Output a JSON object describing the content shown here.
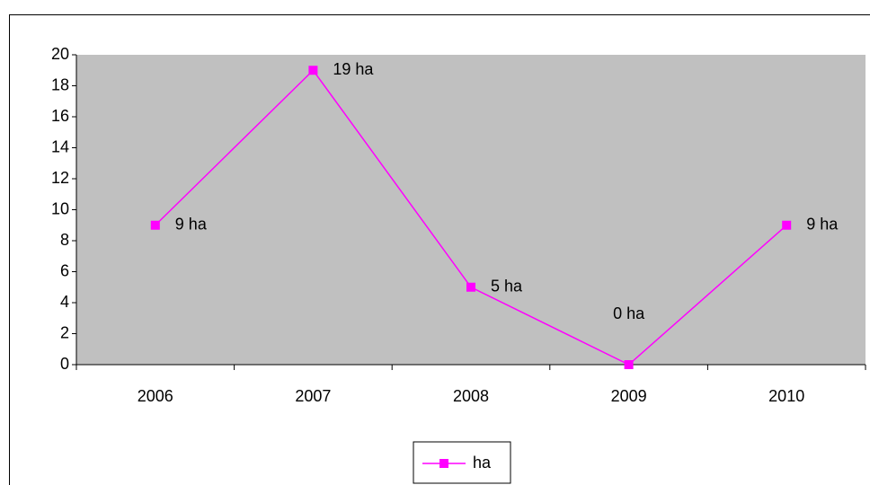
{
  "chart_data": {
    "type": "line",
    "categories": [
      "2006",
      "2007",
      "2008",
      "2009",
      "2010"
    ],
    "series": [
      {
        "name": "ha",
        "color": "#ff00ff",
        "values": [
          9,
          19,
          5,
          0,
          9
        ],
        "value_labels": [
          "9 ha",
          "19 ha",
          "5 ha",
          "0 ha",
          "9 ha"
        ]
      }
    ],
    "ylim": [
      0,
      20
    ],
    "yticks": [
      0,
      2,
      4,
      6,
      8,
      10,
      12,
      14,
      16,
      18,
      20
    ],
    "plot_background": "#c0c0c0",
    "grid": false,
    "legend": "bottom"
  }
}
